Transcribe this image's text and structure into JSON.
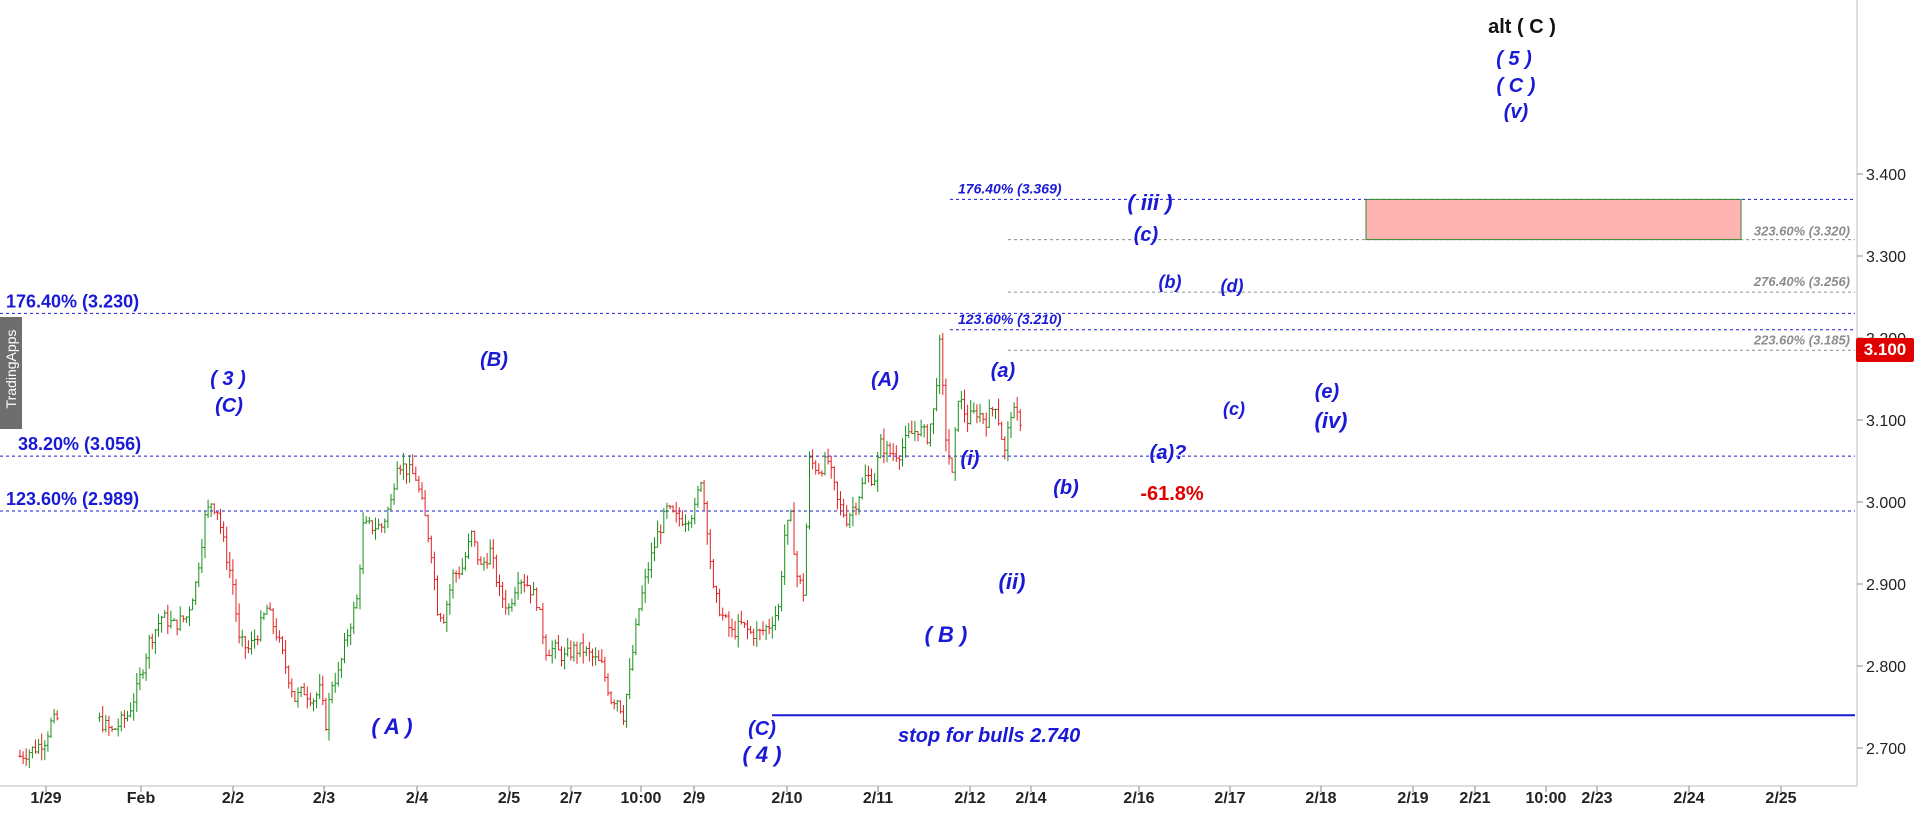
{
  "brand": "TradingApps",
  "price_badge": "3.100",
  "stop_label": "stop for bulls 2.740",
  "chart_data": {
    "type": "candlestick",
    "title": "",
    "ylim": [
      2.67,
      3.46
    ],
    "yticks": [
      "2.700",
      "2.800",
      "2.900",
      "3.000",
      "3.100",
      "3.200",
      "3.300",
      "3.400"
    ],
    "xticks": [
      "1/29",
      "Feb",
      "2/2",
      "2/3",
      "2/4",
      "2/5",
      "2/7",
      "10:00",
      "2/9",
      "2/10",
      "2/11",
      "2/12",
      "2/14",
      "2/16",
      "2/17",
      "2/18",
      "2/19",
      "2/21",
      "10:00",
      "2/23",
      "2/24",
      "2/25"
    ],
    "last_price": 3.1,
    "colors": {
      "up": "#1a8f1a",
      "down": "#e02020",
      "levels": "#1a1ad6",
      "grey": "#8c8c8c",
      "target": "#ffb3b3"
    },
    "path": [
      [
        0,
        2.69
      ],
      [
        5,
        2.7
      ],
      [
        8,
        2.71
      ],
      [
        10,
        2.73
      ],
      [
        14,
        2.74
      ],
      [
        17,
        2.73
      ],
      [
        20,
        2.72
      ],
      [
        25,
        2.74
      ],
      [
        28,
        2.77
      ],
      [
        32,
        2.83
      ],
      [
        36,
        2.86
      ],
      [
        40,
        2.85
      ],
      [
        44,
        2.86
      ],
      [
        47,
        2.9
      ],
      [
        50,
        2.98
      ],
      [
        52,
        3.0
      ],
      [
        54,
        2.99
      ],
      [
        56,
        2.95
      ],
      [
        59,
        2.9
      ],
      [
        61,
        2.83
      ],
      [
        64,
        2.82
      ],
      [
        67,
        2.84
      ],
      [
        70,
        2.87
      ],
      [
        73,
        2.84
      ],
      [
        76,
        2.8
      ],
      [
        79,
        2.76
      ],
      [
        82,
        2.77
      ],
      [
        85,
        2.76
      ],
      [
        87,
        2.77
      ],
      [
        89,
        2.73
      ],
      [
        91,
        2.78
      ],
      [
        93,
        2.79
      ],
      [
        96,
        2.84
      ],
      [
        99,
        2.88
      ],
      [
        101,
        2.97
      ],
      [
        104,
        2.97
      ],
      [
        107,
        2.97
      ],
      [
        110,
        3.0
      ],
      [
        112,
        3.05
      ],
      [
        115,
        3.04
      ],
      [
        118,
        3.03
      ],
      [
        121,
        2.98
      ],
      [
        123,
        2.94
      ],
      [
        125,
        2.87
      ],
      [
        127,
        2.86
      ],
      [
        130,
        2.91
      ],
      [
        133,
        2.92
      ],
      [
        136,
        2.96
      ],
      [
        139,
        2.92
      ],
      [
        142,
        2.94
      ],
      [
        145,
        2.89
      ],
      [
        148,
        2.87
      ],
      [
        151,
        2.91
      ],
      [
        154,
        2.9
      ],
      [
        157,
        2.88
      ],
      [
        160,
        2.82
      ],
      [
        163,
        2.82
      ],
      [
        166,
        2.81
      ],
      [
        169,
        2.82
      ],
      [
        172,
        2.82
      ],
      [
        175,
        2.81
      ],
      [
        178,
        2.8
      ],
      [
        181,
        2.76
      ],
      [
        183,
        2.76
      ],
      [
        185,
        2.74
      ],
      [
        187,
        2.79
      ],
      [
        190,
        2.87
      ],
      [
        193,
        2.92
      ],
      [
        196,
        2.96
      ],
      [
        199,
        2.99
      ],
      [
        202,
        2.98
      ],
      [
        205,
        2.98
      ],
      [
        208,
        2.99
      ],
      [
        210,
        3.03
      ],
      [
        212,
        2.97
      ],
      [
        214,
        2.89
      ],
      [
        217,
        2.86
      ],
      [
        220,
        2.84
      ],
      [
        223,
        2.85
      ],
      [
        226,
        2.84
      ],
      [
        229,
        2.84
      ],
      [
        232,
        2.85
      ],
      [
        235,
        2.87
      ],
      [
        237,
        2.96
      ],
      [
        239,
        2.98
      ],
      [
        241,
        2.91
      ],
      [
        243,
        2.89
      ],
      [
        245,
        3.05
      ],
      [
        248,
        3.04
      ],
      [
        251,
        3.05
      ],
      [
        254,
        3.0
      ],
      [
        257,
        2.98
      ],
      [
        260,
        3.0
      ],
      [
        263,
        3.03
      ],
      [
        266,
        3.03
      ],
      [
        268,
        3.07
      ],
      [
        271,
        3.06
      ],
      [
        274,
        3.06
      ],
      [
        277,
        3.08
      ],
      [
        280,
        3.09
      ],
      [
        283,
        3.08
      ],
      [
        285,
        3.11
      ],
      [
        287,
        3.19
      ],
      [
        289,
        3.08
      ],
      [
        291,
        3.03
      ],
      [
        293,
        3.13
      ],
      [
        296,
        3.1
      ],
      [
        299,
        3.11
      ],
      [
        302,
        3.1
      ],
      [
        305,
        3.12
      ],
      [
        308,
        3.06
      ],
      [
        310,
        3.11
      ],
      [
        313,
        3.1
      ]
    ],
    "levels": [
      {
        "text": "176.40% (3.230)",
        "value": 3.23,
        "style": "major"
      },
      {
        "text": "123.60% (2.989)",
        "value": 2.989,
        "style": "major"
      },
      {
        "text": "38.20% (3.056)",
        "value": 3.056,
        "style": "major"
      },
      {
        "text": "176.40% (3.369)",
        "value": 3.369,
        "style": "minor-blue"
      },
      {
        "text": "123.60% (3.210)",
        "value": 3.21,
        "style": "minor-blue"
      },
      {
        "text": "323.60% (3.320)",
        "value": 3.32,
        "style": "grey"
      },
      {
        "text": "276.40% (3.256)",
        "value": 3.256,
        "style": "grey"
      },
      {
        "text": "223.60% (3.185)",
        "value": 3.185,
        "style": "grey"
      }
    ],
    "target_zone": {
      "low": 3.32,
      "high": 3.369
    },
    "stop_level": 2.74,
    "annotations": {
      "alt_c": "alt ( C )",
      "w5": "( 5 )",
      "wC_big": "( C )",
      "wv": "(v)",
      "wiii": "( iii )",
      "wc_top": "(c)",
      "wb_top": "(b)",
      "wd": "(d)",
      "w3": "( 3 )",
      "wC1": "(C)",
      "wB1": "(B)",
      "wA_paren": "(A)",
      "wa1": "(a)",
      "wi": "(i)",
      "wii": "(ii)",
      "wb1": "(b)",
      "wa_q": "(a)?",
      "pct": "-61.8%",
      "wc2": "(c)",
      "we": "(e)",
      "wiv": "(iv)",
      "wA_big": "(  A  )",
      "wB_big": "( B )",
      "wC2": "(C)",
      "w4": "( 4 )"
    }
  }
}
